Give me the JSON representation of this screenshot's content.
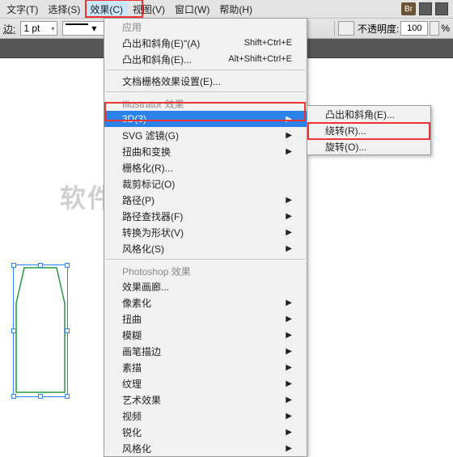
{
  "menubar": {
    "items": [
      "文字(T)",
      "选择(S)",
      "效果(C)",
      "视图(V)",
      "窗口(W)",
      "帮助(H)"
    ],
    "open_index": 2
  },
  "toolbar": {
    "stroke_label": "边:",
    "stroke_value": "1 pt",
    "opacity_label": "不透明度:",
    "opacity_value": "100",
    "opacity_unit": "%"
  },
  "watermark": "软件自学网",
  "effects_menu": {
    "top": [
      {
        "label": "应用",
        "disabled": true
      },
      {
        "label": "凸出和斜角(E)\"(A)",
        "shortcut": "Shift+Ctrl+E"
      },
      {
        "label": "凸出和斜角(E)...",
        "shortcut": "Alt+Shift+Ctrl+E"
      }
    ],
    "raster": {
      "label": "文档栅格效果设置(E)..."
    },
    "illustrator_header": "Illustrator 效果",
    "ill_items": [
      {
        "label": "3D(3)",
        "sub": true,
        "hl": true
      },
      {
        "label": "SVG 滤镜(G)",
        "sub": true
      },
      {
        "label": "扭曲和变换",
        "sub": true
      },
      {
        "label": "栅格化(R)..."
      },
      {
        "label": "裁剪标记(O)"
      },
      {
        "label": "路径(P)",
        "sub": true
      },
      {
        "label": "路径查找器(F)",
        "sub": true
      },
      {
        "label": "转换为形状(V)",
        "sub": true
      },
      {
        "label": "风格化(S)",
        "sub": true
      }
    ],
    "ps_header": "Photoshop 效果",
    "ps_items": [
      {
        "label": "效果画廊..."
      },
      {
        "label": "像素化",
        "sub": true
      },
      {
        "label": "扭曲",
        "sub": true
      },
      {
        "label": "模糊",
        "sub": true
      },
      {
        "label": "画笔描边",
        "sub": true
      },
      {
        "label": "素描",
        "sub": true
      },
      {
        "label": "纹理",
        "sub": true
      },
      {
        "label": "艺术效果",
        "sub": true
      },
      {
        "label": "视频",
        "sub": true
      },
      {
        "label": "锐化",
        "sub": true
      },
      {
        "label": "风格化",
        "sub": true
      }
    ]
  },
  "submenu_3d": [
    {
      "label": "凸出和斜角(E)..."
    },
    {
      "label": "绕转(R)..."
    },
    {
      "label": "旋转(O)..."
    }
  ],
  "shape": {
    "stroke": "#249a3e",
    "handle": "#2c82ff"
  }
}
